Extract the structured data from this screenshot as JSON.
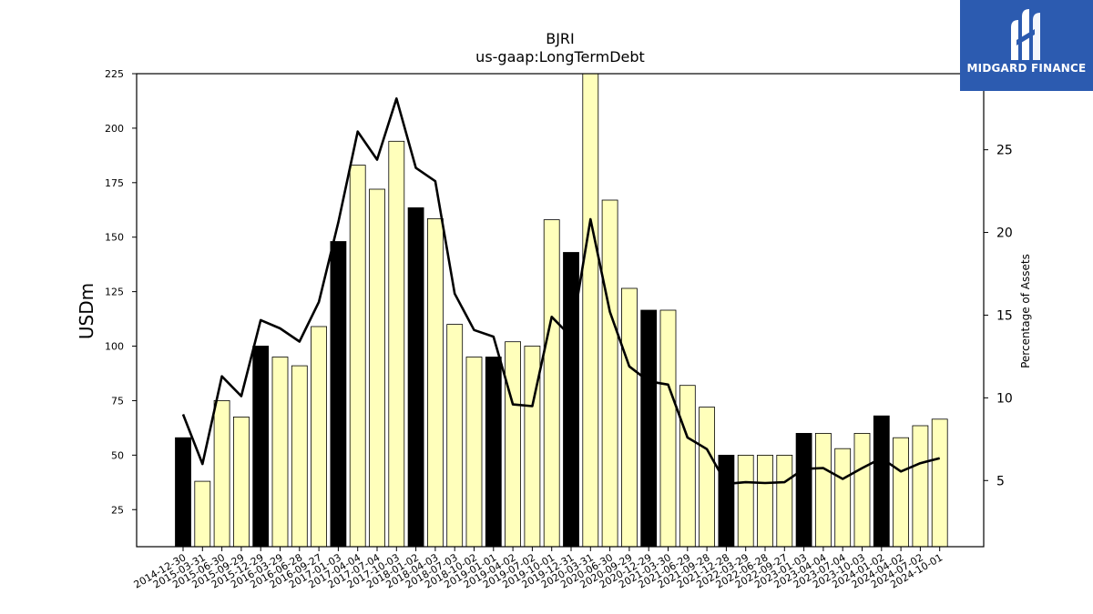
{
  "chart_data": {
    "type": "bar",
    "title": "BJRI",
    "subtitle": "us-gaap:LongTermDebt",
    "ylabel": "USDm",
    "y2label": "Percentage of Assets",
    "ylim": [
      8,
      225
    ],
    "y2lim": [
      1,
      29.6
    ],
    "yticks": [
      25,
      50,
      75,
      100,
      125,
      150,
      175,
      200,
      225
    ],
    "y2ticks": [
      5,
      10,
      15,
      20,
      25
    ],
    "grid": false,
    "colors": {
      "bar": "#ffffbb",
      "bar_highlight": "#000000",
      "line": "#000000",
      "edge": "#000000"
    },
    "categories": [
      "2014-12-30",
      "2015-03-31",
      "2015-06-30",
      "2015-09-29",
      "2015-12-29",
      "2016-03-29",
      "2016-06-28",
      "2016-09-27",
      "2017-01-03",
      "2017-04-04",
      "2017-07-04",
      "2017-10-03",
      "2018-01-02",
      "2018-04-03",
      "2018-07-03",
      "2018-10-02",
      "2019-01-01",
      "2019-04-02",
      "2019-07-02",
      "2019-10-01",
      "2019-12-31",
      "2020-03-31",
      "2020-06-30",
      "2020-09-29",
      "2020-12-29",
      "2021-03-30",
      "2021-06-29",
      "2021-09-28",
      "2021-12-28",
      "2022-03-29",
      "2022-06-28",
      "2022-09-27",
      "2023-01-03",
      "2023-04-04",
      "2023-07-04",
      "2023-10-03",
      "2024-01-02",
      "2024-04-02",
      "2024-07-02",
      "2024-10-01"
    ],
    "series": [
      {
        "type": "bar",
        "values": [
          58,
          38,
          75,
          67.5,
          100,
          95,
          91,
          109,
          148,
          183,
          172,
          194,
          163.5,
          158.5,
          110,
          95,
          95,
          102,
          100,
          158,
          143,
          225,
          167,
          126.5,
          116.5,
          116.5,
          82,
          72,
          50,
          50,
          50,
          50,
          60,
          60,
          53,
          60,
          68,
          58,
          63.5,
          66.5
        ],
        "highlight": [
          true,
          false,
          false,
          false,
          true,
          false,
          false,
          false,
          true,
          false,
          false,
          false,
          true,
          false,
          false,
          false,
          true,
          false,
          false,
          false,
          true,
          false,
          false,
          false,
          true,
          false,
          false,
          false,
          true,
          false,
          false,
          false,
          true,
          false,
          false,
          false,
          true,
          false,
          false,
          false
        ]
      },
      {
        "type": "line",
        "axis": "right",
        "values": [
          9.0,
          6.0,
          11.3,
          10.1,
          14.7,
          14.2,
          13.4,
          15.8,
          20.6,
          26.1,
          24.4,
          28.1,
          23.9,
          23.1,
          16.3,
          14.1,
          13.7,
          9.6,
          9.5,
          14.9,
          13.7,
          20.8,
          15.2,
          11.9,
          11.0,
          10.8,
          7.6,
          6.9,
          4.8,
          4.9,
          4.85,
          4.9,
          5.7,
          5.75,
          5.1,
          5.75,
          6.35,
          5.55,
          6.05,
          6.35
        ]
      }
    ]
  },
  "logo": {
    "text": "MIDGARD FINANCE"
  }
}
